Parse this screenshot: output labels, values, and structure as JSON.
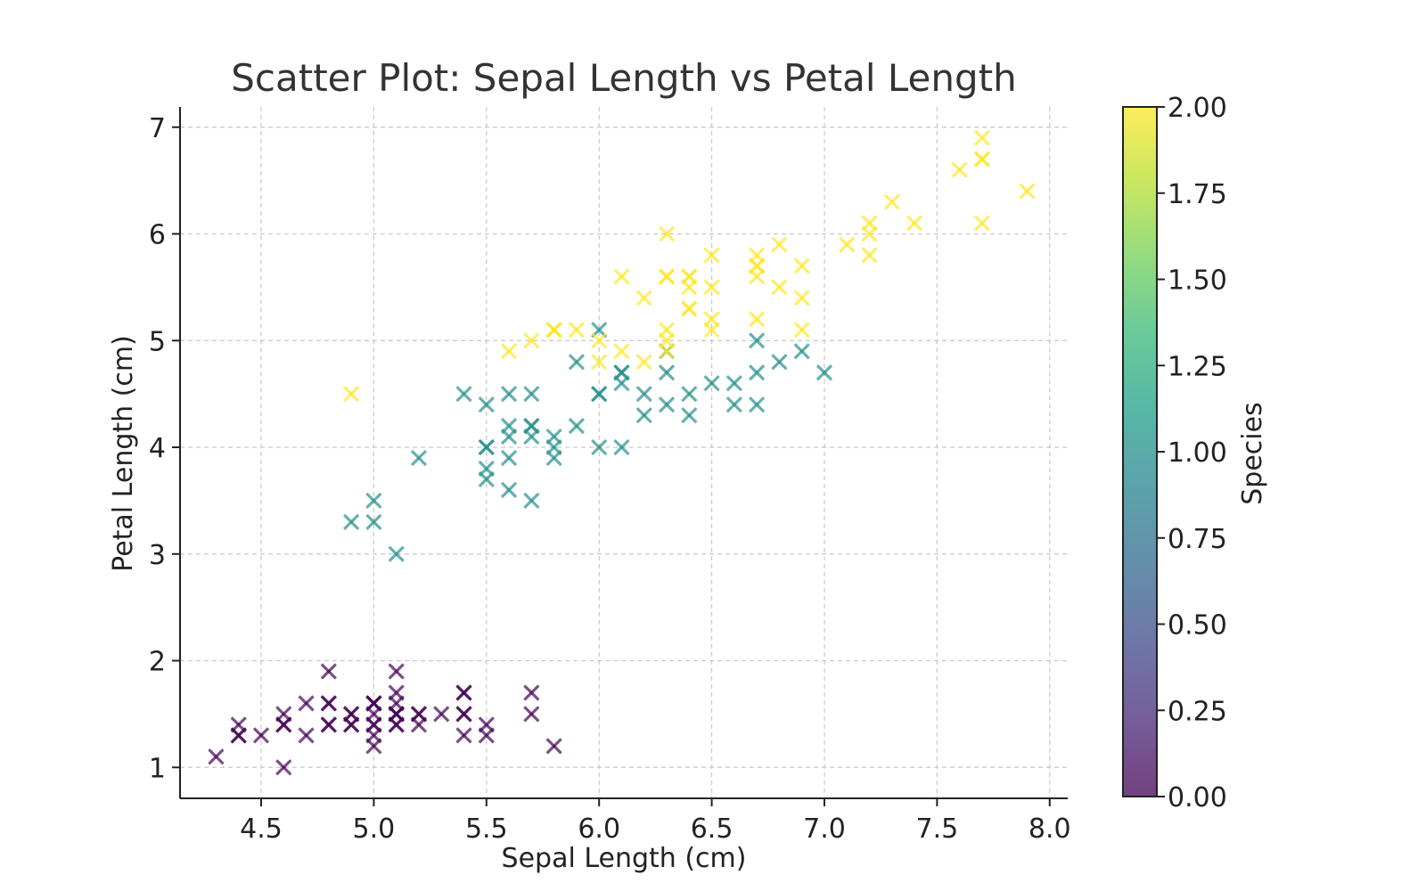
{
  "chart_data": {
    "type": "scatter",
    "title": "Scatter Plot: Sepal Length vs Petal Length",
    "xlabel": "Sepal Length (cm)",
    "ylabel": "Petal Length (cm)",
    "xlim": [
      4.14,
      8.08
    ],
    "ylim": [
      0.71,
      7.19
    ],
    "xticks": [
      "4.5",
      "5.0",
      "5.5",
      "6.0",
      "6.5",
      "7.0",
      "7.5",
      "8.0"
    ],
    "yticks": [
      "1",
      "2",
      "3",
      "4",
      "5",
      "6",
      "7"
    ],
    "grid": true,
    "marker": "x",
    "alpha": 0.7,
    "colorbar": {
      "label": "Species",
      "colormap": "viridis",
      "range": [
        0,
        2
      ],
      "ticks": [
        "0.00",
        "0.25",
        "0.50",
        "0.75",
        "1.00",
        "1.25",
        "1.50",
        "1.75",
        "2.00"
      ],
      "colors": [
        "#440154",
        "#482878",
        "#3e4989",
        "#31688e",
        "#26828e",
        "#1f9e89",
        "#35b779",
        "#6ece58",
        "#b5de2b",
        "#fde725"
      ]
    },
    "points": [
      [
        5.1,
        1.4,
        0
      ],
      [
        4.9,
        1.4,
        0
      ],
      [
        4.7,
        1.3,
        0
      ],
      [
        4.6,
        1.5,
        0
      ],
      [
        5.0,
        1.4,
        0
      ],
      [
        5.4,
        1.7,
        0
      ],
      [
        4.6,
        1.4,
        0
      ],
      [
        5.0,
        1.5,
        0
      ],
      [
        4.4,
        1.4,
        0
      ],
      [
        4.9,
        1.5,
        0
      ],
      [
        5.4,
        1.5,
        0
      ],
      [
        4.8,
        1.6,
        0
      ],
      [
        4.8,
        1.4,
        0
      ],
      [
        4.3,
        1.1,
        0
      ],
      [
        5.8,
        1.2,
        0
      ],
      [
        5.7,
        1.5,
        0
      ],
      [
        5.4,
        1.3,
        0
      ],
      [
        5.1,
        1.4,
        0
      ],
      [
        5.7,
        1.7,
        0
      ],
      [
        5.1,
        1.5,
        0
      ],
      [
        5.4,
        1.7,
        0
      ],
      [
        5.1,
        1.5,
        0
      ],
      [
        4.6,
        1.0,
        0
      ],
      [
        5.1,
        1.7,
        0
      ],
      [
        4.8,
        1.9,
        0
      ],
      [
        5.0,
        1.6,
        0
      ],
      [
        5.0,
        1.6,
        0
      ],
      [
        5.2,
        1.5,
        0
      ],
      [
        5.2,
        1.4,
        0
      ],
      [
        4.7,
        1.6,
        0
      ],
      [
        4.8,
        1.6,
        0
      ],
      [
        5.4,
        1.5,
        0
      ],
      [
        5.2,
        1.5,
        0
      ],
      [
        5.5,
        1.4,
        0
      ],
      [
        4.9,
        1.5,
        0
      ],
      [
        5.0,
        1.2,
        0
      ],
      [
        5.5,
        1.3,
        0
      ],
      [
        4.9,
        1.4,
        0
      ],
      [
        4.4,
        1.3,
        0
      ],
      [
        5.1,
        1.5,
        0
      ],
      [
        5.0,
        1.3,
        0
      ],
      [
        4.5,
        1.3,
        0
      ],
      [
        4.4,
        1.3,
        0
      ],
      [
        5.0,
        1.6,
        0
      ],
      [
        5.1,
        1.9,
        0
      ],
      [
        4.8,
        1.4,
        0
      ],
      [
        5.1,
        1.6,
        0
      ],
      [
        4.6,
        1.4,
        0
      ],
      [
        5.3,
        1.5,
        0
      ],
      [
        5.0,
        1.4,
        0
      ],
      [
        7.0,
        4.7,
        1
      ],
      [
        6.4,
        4.5,
        1
      ],
      [
        6.9,
        4.9,
        1
      ],
      [
        5.5,
        4.0,
        1
      ],
      [
        6.5,
        4.6,
        1
      ],
      [
        5.7,
        4.5,
        1
      ],
      [
        6.3,
        4.7,
        1
      ],
      [
        4.9,
        3.3,
        1
      ],
      [
        6.6,
        4.6,
        1
      ],
      [
        5.2,
        3.9,
        1
      ],
      [
        5.0,
        3.5,
        1
      ],
      [
        5.9,
        4.2,
        1
      ],
      [
        6.0,
        4.0,
        1
      ],
      [
        6.1,
        4.7,
        1
      ],
      [
        5.6,
        3.6,
        1
      ],
      [
        6.7,
        4.4,
        1
      ],
      [
        5.6,
        4.5,
        1
      ],
      [
        5.8,
        4.1,
        1
      ],
      [
        6.2,
        4.5,
        1
      ],
      [
        5.6,
        3.9,
        1
      ],
      [
        5.9,
        4.8,
        1
      ],
      [
        6.1,
        4.0,
        1
      ],
      [
        6.3,
        4.9,
        1
      ],
      [
        6.1,
        4.7,
        1
      ],
      [
        6.4,
        4.3,
        1
      ],
      [
        6.6,
        4.4,
        1
      ],
      [
        6.8,
        4.8,
        1
      ],
      [
        6.7,
        5.0,
        1
      ],
      [
        6.0,
        4.5,
        1
      ],
      [
        5.7,
        3.5,
        1
      ],
      [
        5.5,
        3.8,
        1
      ],
      [
        5.5,
        3.7,
        1
      ],
      [
        5.8,
        3.9,
        1
      ],
      [
        6.0,
        5.1,
        1
      ],
      [
        5.4,
        4.5,
        1
      ],
      [
        6.0,
        4.5,
        1
      ],
      [
        6.7,
        4.7,
        1
      ],
      [
        6.3,
        4.4,
        1
      ],
      [
        5.6,
        4.1,
        1
      ],
      [
        5.5,
        4.0,
        1
      ],
      [
        5.5,
        4.4,
        1
      ],
      [
        6.1,
        4.6,
        1
      ],
      [
        5.8,
        4.0,
        1
      ],
      [
        5.0,
        3.3,
        1
      ],
      [
        5.6,
        4.2,
        1
      ],
      [
        5.7,
        4.2,
        1
      ],
      [
        5.7,
        4.2,
        1
      ],
      [
        6.2,
        4.3,
        1
      ],
      [
        5.1,
        3.0,
        1
      ],
      [
        5.7,
        4.1,
        1
      ],
      [
        6.3,
        6.0,
        2
      ],
      [
        5.8,
        5.1,
        2
      ],
      [
        7.1,
        5.9,
        2
      ],
      [
        6.3,
        5.6,
        2
      ],
      [
        6.5,
        5.8,
        2
      ],
      [
        7.6,
        6.6,
        2
      ],
      [
        4.9,
        4.5,
        2
      ],
      [
        7.3,
        6.3,
        2
      ],
      [
        6.7,
        5.8,
        2
      ],
      [
        7.2,
        6.1,
        2
      ],
      [
        6.5,
        5.1,
        2
      ],
      [
        6.4,
        5.3,
        2
      ],
      [
        6.8,
        5.5,
        2
      ],
      [
        5.7,
        5.0,
        2
      ],
      [
        5.8,
        5.1,
        2
      ],
      [
        6.4,
        5.3,
        2
      ],
      [
        6.5,
        5.5,
        2
      ],
      [
        7.7,
        6.7,
        2
      ],
      [
        7.7,
        6.9,
        2
      ],
      [
        6.0,
        5.0,
        2
      ],
      [
        6.9,
        5.7,
        2
      ],
      [
        5.6,
        4.9,
        2
      ],
      [
        7.7,
        6.7,
        2
      ],
      [
        6.3,
        4.9,
        2
      ],
      [
        6.7,
        5.7,
        2
      ],
      [
        7.2,
        6.0,
        2
      ],
      [
        6.2,
        4.8,
        2
      ],
      [
        6.1,
        4.9,
        2
      ],
      [
        6.4,
        5.6,
        2
      ],
      [
        7.2,
        5.8,
        2
      ],
      [
        7.4,
        6.1,
        2
      ],
      [
        7.9,
        6.4,
        2
      ],
      [
        6.4,
        5.6,
        2
      ],
      [
        6.3,
        5.1,
        2
      ],
      [
        6.1,
        5.6,
        2
      ],
      [
        7.7,
        6.1,
        2
      ],
      [
        6.3,
        5.6,
        2
      ],
      [
        6.4,
        5.5,
        2
      ],
      [
        6.0,
        4.8,
        2
      ],
      [
        6.9,
        5.4,
        2
      ],
      [
        6.7,
        5.6,
        2
      ],
      [
        6.9,
        5.1,
        2
      ],
      [
        5.8,
        5.1,
        2
      ],
      [
        6.8,
        5.9,
        2
      ],
      [
        6.7,
        5.7,
        2
      ],
      [
        6.7,
        5.2,
        2
      ],
      [
        6.3,
        5.0,
        2
      ],
      [
        6.5,
        5.2,
        2
      ],
      [
        6.2,
        5.4,
        2
      ],
      [
        5.9,
        5.1,
        2
      ]
    ]
  }
}
